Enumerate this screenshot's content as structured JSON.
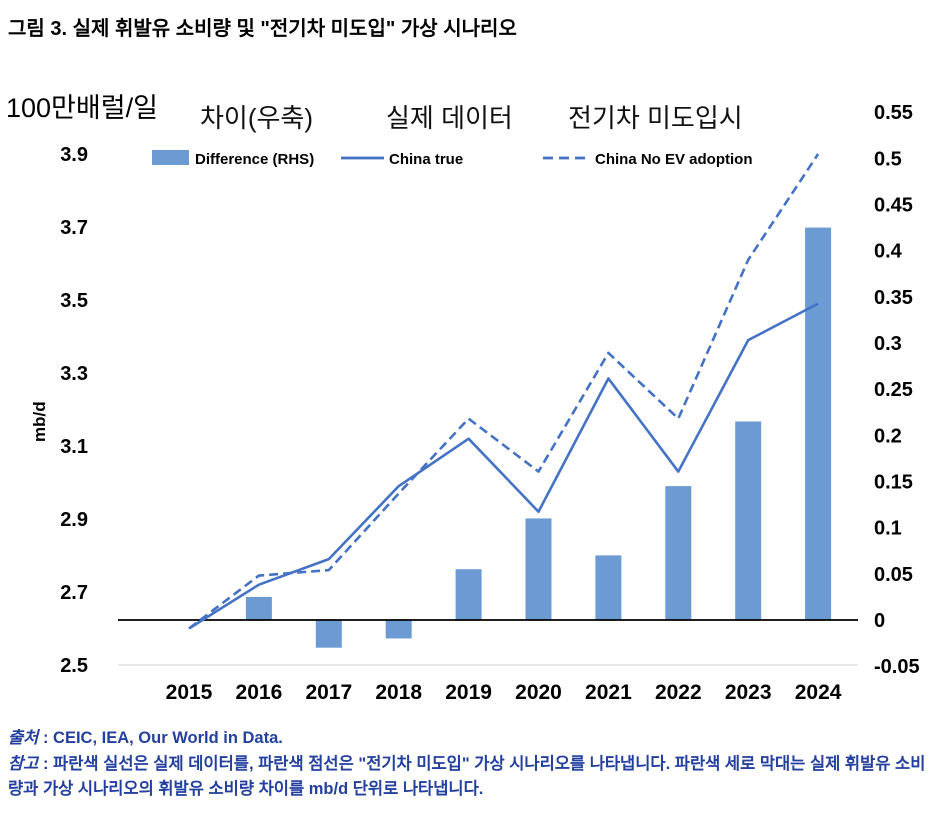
{
  "title": "그림 3. 실제 휘발유 소비량 및 \"전기차 미도입\" 가상 시나리오",
  "chart_data": {
    "type": "bar",
    "subtype": "combo-bar-line-dual-axis",
    "categories": [
      "2015",
      "2016",
      "2017",
      "2018",
      "2019",
      "2020",
      "2021",
      "2022",
      "2023",
      "2024"
    ],
    "left_unit_label": "100만배럴/일",
    "ylabel_left": "mb/d",
    "legend_korean": [
      "차이(우축)",
      "실제 데이터",
      "전기차 미도입시"
    ],
    "bar_series": {
      "name": "Difference (RHS)",
      "axis": "right",
      "values": [
        0,
        0.025,
        -0.03,
        -0.02,
        0.055,
        0.11,
        0.07,
        0.145,
        0.215,
        0.425
      ]
    },
    "line_series": [
      {
        "name": "China true",
        "style": "solid",
        "axis": "left",
        "values": [
          2.6,
          2.72,
          2.79,
          2.99,
          3.12,
          2.92,
          3.285,
          3.03,
          3.39,
          3.49
        ]
      },
      {
        "name": "China No EV adoption",
        "style": "dashed",
        "axis": "left",
        "values": [
          2.6,
          2.745,
          2.76,
          2.97,
          3.175,
          3.03,
          3.355,
          3.175,
          3.61,
          3.9
        ]
      }
    ],
    "left_axis": {
      "min": 2.5,
      "max": 3.9,
      "ticks": [
        "3.9",
        "3.7",
        "3.5",
        "3.3",
        "3.1",
        "2.9",
        "2.7",
        "2.5"
      ]
    },
    "right_axis": {
      "min": -0.05,
      "max": 0.55,
      "ticks": [
        "0.55",
        "0.5",
        "0.45",
        "0.4",
        "0.35",
        "0.3",
        "0.25",
        "0.2",
        "0.15",
        "0.1",
        "0.05",
        "0",
        "-0.05"
      ]
    },
    "grid": "off",
    "legend_position": "top",
    "colors": {
      "bar": "#6B9BD2",
      "line": "#4472C4",
      "note_text": "#24409E"
    }
  },
  "footer": {
    "source_label": "출처",
    "source_text": " : CEIC, IEA, Our World in Data.",
    "note_label": "참고",
    "note_text": " : 파란색 실선은 실제 데이터를, 파란색 점선은 \"전기차 미도입\" 가상 시나리오를 나타냅니다. 파란색 세로 막대는 실제 휘발유 소비량과 가상 시나리오의 휘발유 소비량 차이를 mb/d 단위로 나타냅니다."
  }
}
